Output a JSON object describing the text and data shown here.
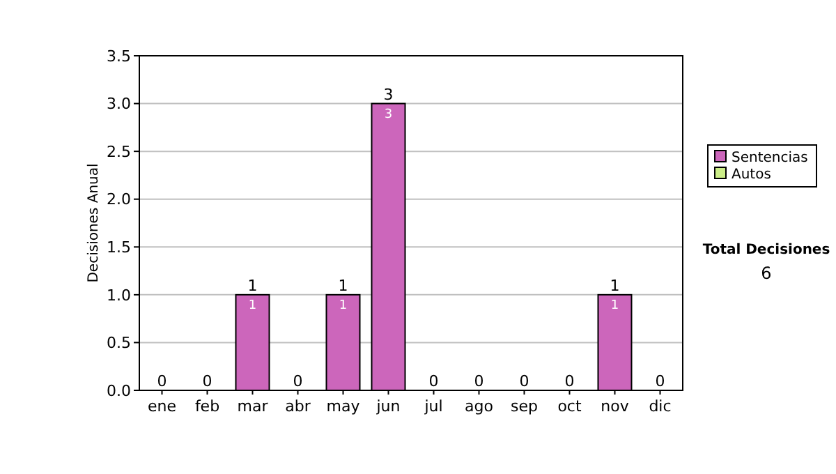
{
  "chart_data": {
    "type": "bar",
    "stacked": true,
    "ylabel": "Decisiones Anual",
    "categories": [
      "ene",
      "feb",
      "mar",
      "abr",
      "may",
      "jun",
      "jul",
      "ago",
      "sep",
      "oct",
      "nov",
      "dic"
    ],
    "series": [
      {
        "name": "Sentencias",
        "color": "#cc66bb",
        "values": [
          0,
          0,
          1,
          0,
          1,
          3,
          0,
          0,
          0,
          0,
          1,
          0
        ],
        "value_labels": [
          null,
          null,
          "1",
          null,
          "1",
          "3",
          null,
          null,
          null,
          null,
          "1",
          null
        ]
      },
      {
        "name": "Autos",
        "color": "#ccee88",
        "values": [
          0,
          0,
          0,
          0,
          0,
          0,
          0,
          0,
          0,
          0,
          0,
          0
        ]
      }
    ],
    "totals": [
      "0",
      "0",
      "1",
      "0",
      "1",
      "3",
      "0",
      "0",
      "0",
      "0",
      "1",
      "0"
    ],
    "ylim": [
      0,
      3.5
    ],
    "yticks": [
      {
        "value": 0,
        "label": "0.0"
      },
      {
        "value": 0.5,
        "label": "0.5"
      },
      {
        "value": 1,
        "label": "1.0"
      },
      {
        "value": 1.5,
        "label": "1.5"
      },
      {
        "value": 2,
        "label": "2.0"
      },
      {
        "value": 2.5,
        "label": "2.5"
      },
      {
        "value": 3,
        "label": "3.0"
      },
      {
        "value": 3.5,
        "label": "3.5"
      }
    ],
    "grid": "y",
    "legend": "right",
    "annotations": [
      "Total Decisiones",
      "6"
    ]
  }
}
